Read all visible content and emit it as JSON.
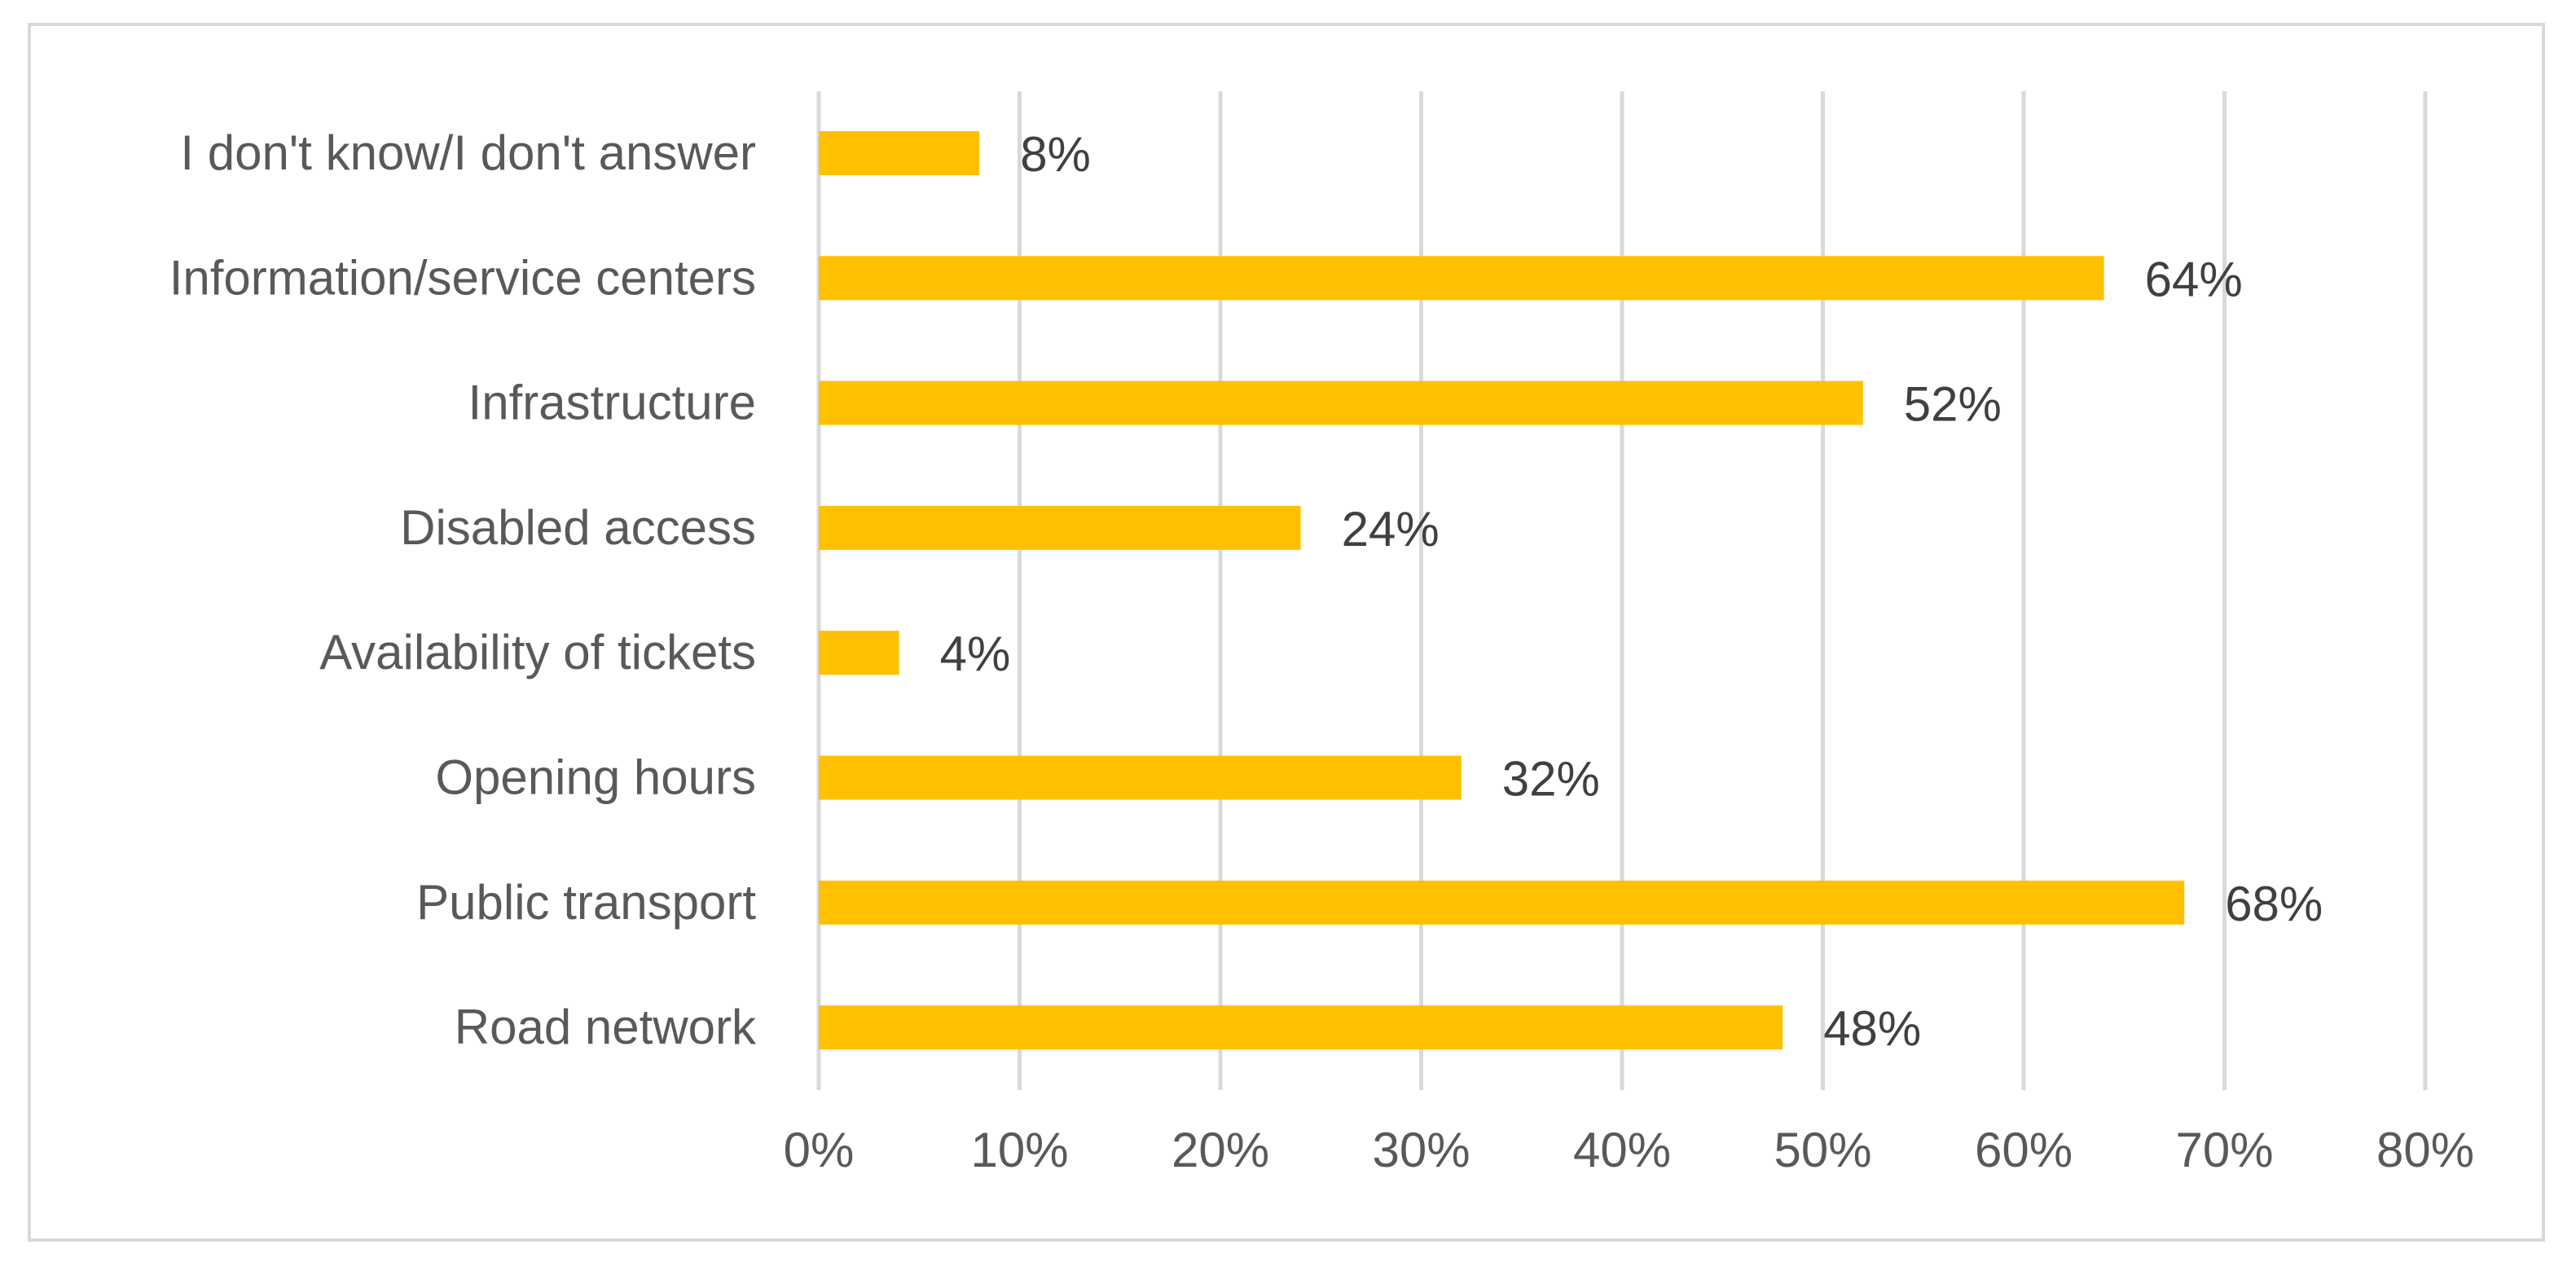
{
  "chart_data": {
    "type": "bar",
    "orientation": "horizontal",
    "title": "",
    "xlabel": "",
    "ylabel": "",
    "categories": [
      "I don't know/I don't answer",
      "Information/service centers",
      "Infrastructure",
      "Disabled access",
      "Availability of tickets",
      "Opening hours",
      "Public transport",
      "Road network"
    ],
    "values": [
      8,
      64,
      52,
      24,
      4,
      32,
      68,
      48
    ],
    "data_labels": [
      "8%",
      "64%",
      "52%",
      "24%",
      "4%",
      "32%",
      "68%",
      "48%"
    ],
    "xlim": [
      0,
      80
    ],
    "x_ticks": [
      0,
      10,
      20,
      30,
      40,
      50,
      60,
      70,
      80
    ],
    "x_tick_labels": [
      "0%",
      "10%",
      "20%",
      "30%",
      "40%",
      "50%",
      "60%",
      "70%",
      "80%"
    ],
    "grid": "vertical",
    "legend": "none",
    "colors": {
      "bar": "#ffc000",
      "grid": "#d9d9d9",
      "axis_text": "#595959",
      "data_label": "#404040",
      "border": "#d9d9d9"
    }
  }
}
